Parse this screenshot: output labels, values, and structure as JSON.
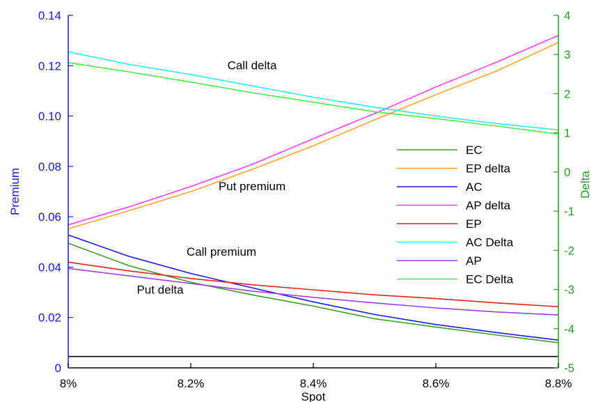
{
  "chart_data": {
    "type": "line",
    "xlabel": "Spot",
    "ylabel_left": "Premium",
    "ylabel_right": "Delta",
    "xlim": [
      0.08,
      0.088
    ],
    "ylim_left": [
      0,
      0.14
    ],
    "ylim_right": [
      -5,
      4
    ],
    "x_ticks": [
      {
        "value": 0.08,
        "label": "8%"
      },
      {
        "value": 0.082,
        "label": "8.2%"
      },
      {
        "value": 0.084,
        "label": "8.4%"
      },
      {
        "value": 0.086,
        "label": "8.6%"
      },
      {
        "value": 0.088,
        "label": "8.8%"
      }
    ],
    "y_left_ticks": [
      {
        "value": 0,
        "label": "0"
      },
      {
        "value": 0.02,
        "label": "0.02"
      },
      {
        "value": 0.04,
        "label": "0.04"
      },
      {
        "value": 0.06,
        "label": "0.06"
      },
      {
        "value": 0.08,
        "label": "0.08"
      },
      {
        "value": 0.1,
        "label": "0.10"
      },
      {
        "value": 0.12,
        "label": "0.12"
      },
      {
        "value": 0.14,
        "label": "0.14"
      }
    ],
    "y_right_ticks": [
      {
        "value": -5,
        "label": "-5"
      },
      {
        "value": -4,
        "label": "-4"
      },
      {
        "value": -3,
        "label": "-3"
      },
      {
        "value": -2,
        "label": "-2"
      },
      {
        "value": -1,
        "label": "-1"
      },
      {
        "value": 0,
        "label": "0"
      },
      {
        "value": 1,
        "label": "1"
      },
      {
        "value": 2,
        "label": "2"
      },
      {
        "value": 3,
        "label": "3"
      },
      {
        "value": 4,
        "label": "4"
      }
    ],
    "x": [
      0.08,
      0.081,
      0.082,
      0.083,
      0.084,
      0.085,
      0.086,
      0.087,
      0.088
    ],
    "series": [
      {
        "name": "EC",
        "color": "#3a9a2a",
        "axis": "left",
        "values": [
          0.0495,
          0.0405,
          0.034,
          0.029,
          0.0245,
          0.0195,
          0.0162,
          0.013,
          0.01
        ]
      },
      {
        "name": "EP delta",
        "color": "#ffa530",
        "axis": "left",
        "values": [
          0.0552,
          0.0625,
          0.07,
          0.0788,
          0.0882,
          0.0985,
          0.1085,
          0.118,
          0.1292
        ]
      },
      {
        "name": "AC",
        "color": "#1a1adc",
        "axis": "left",
        "values": [
          0.0528,
          0.0442,
          0.0375,
          0.0318,
          0.0262,
          0.0212,
          0.0172,
          0.014,
          0.011
        ]
      },
      {
        "name": "AP delta",
        "color": "#ff40ff",
        "axis": "left",
        "values": [
          0.0568,
          0.064,
          0.072,
          0.0808,
          0.091,
          0.101,
          0.1115,
          0.1215,
          0.132
        ]
      },
      {
        "name": "EP",
        "color": "#e82020",
        "axis": "left",
        "values": [
          0.042,
          0.0385,
          0.0355,
          0.033,
          0.031,
          0.029,
          0.0275,
          0.0258,
          0.0243
        ]
      },
      {
        "name": "AC Delta",
        "color": "#30e8f0",
        "axis": "left",
        "values": [
          0.1255,
          0.1205,
          0.1165,
          0.112,
          0.1075,
          0.1035,
          0.1,
          0.097,
          0.0945
        ]
      },
      {
        "name": "AP",
        "color": "#9a40e0",
        "axis": "left",
        "values": [
          0.0395,
          0.0365,
          0.0335,
          0.0305,
          0.028,
          0.0258,
          0.0238,
          0.0222,
          0.021
        ]
      },
      {
        "name": "EC Delta",
        "color": "#50e850",
        "axis": "left",
        "values": [
          0.1212,
          0.1175,
          0.1135,
          0.1093,
          0.1055,
          0.1017,
          0.099,
          0.096,
          0.0928
        ]
      },
      {
        "name": "",
        "color": "#000000",
        "axis": "left",
        "values": [
          0.0045,
          0.0045,
          0.0045,
          0.0045,
          0.0045,
          0.0045,
          0.0045,
          0.0045,
          0.0045
        ]
      }
    ],
    "annotations": [
      {
        "text": "Call delta",
        "x": 0.083,
        "y": 0.1185
      },
      {
        "text": "Put premium",
        "x": 0.083,
        "y": 0.0705
      },
      {
        "text": "Call premium",
        "x": 0.0825,
        "y": 0.0445
      },
      {
        "text": "Put delta",
        "x": 0.0815,
        "y": 0.0295
      }
    ],
    "legend_position": "right",
    "grid": false,
    "colors": {
      "left_axis": "#1a1adc",
      "right_axis": "#2a9a2a",
      "frame": "#000000"
    }
  }
}
